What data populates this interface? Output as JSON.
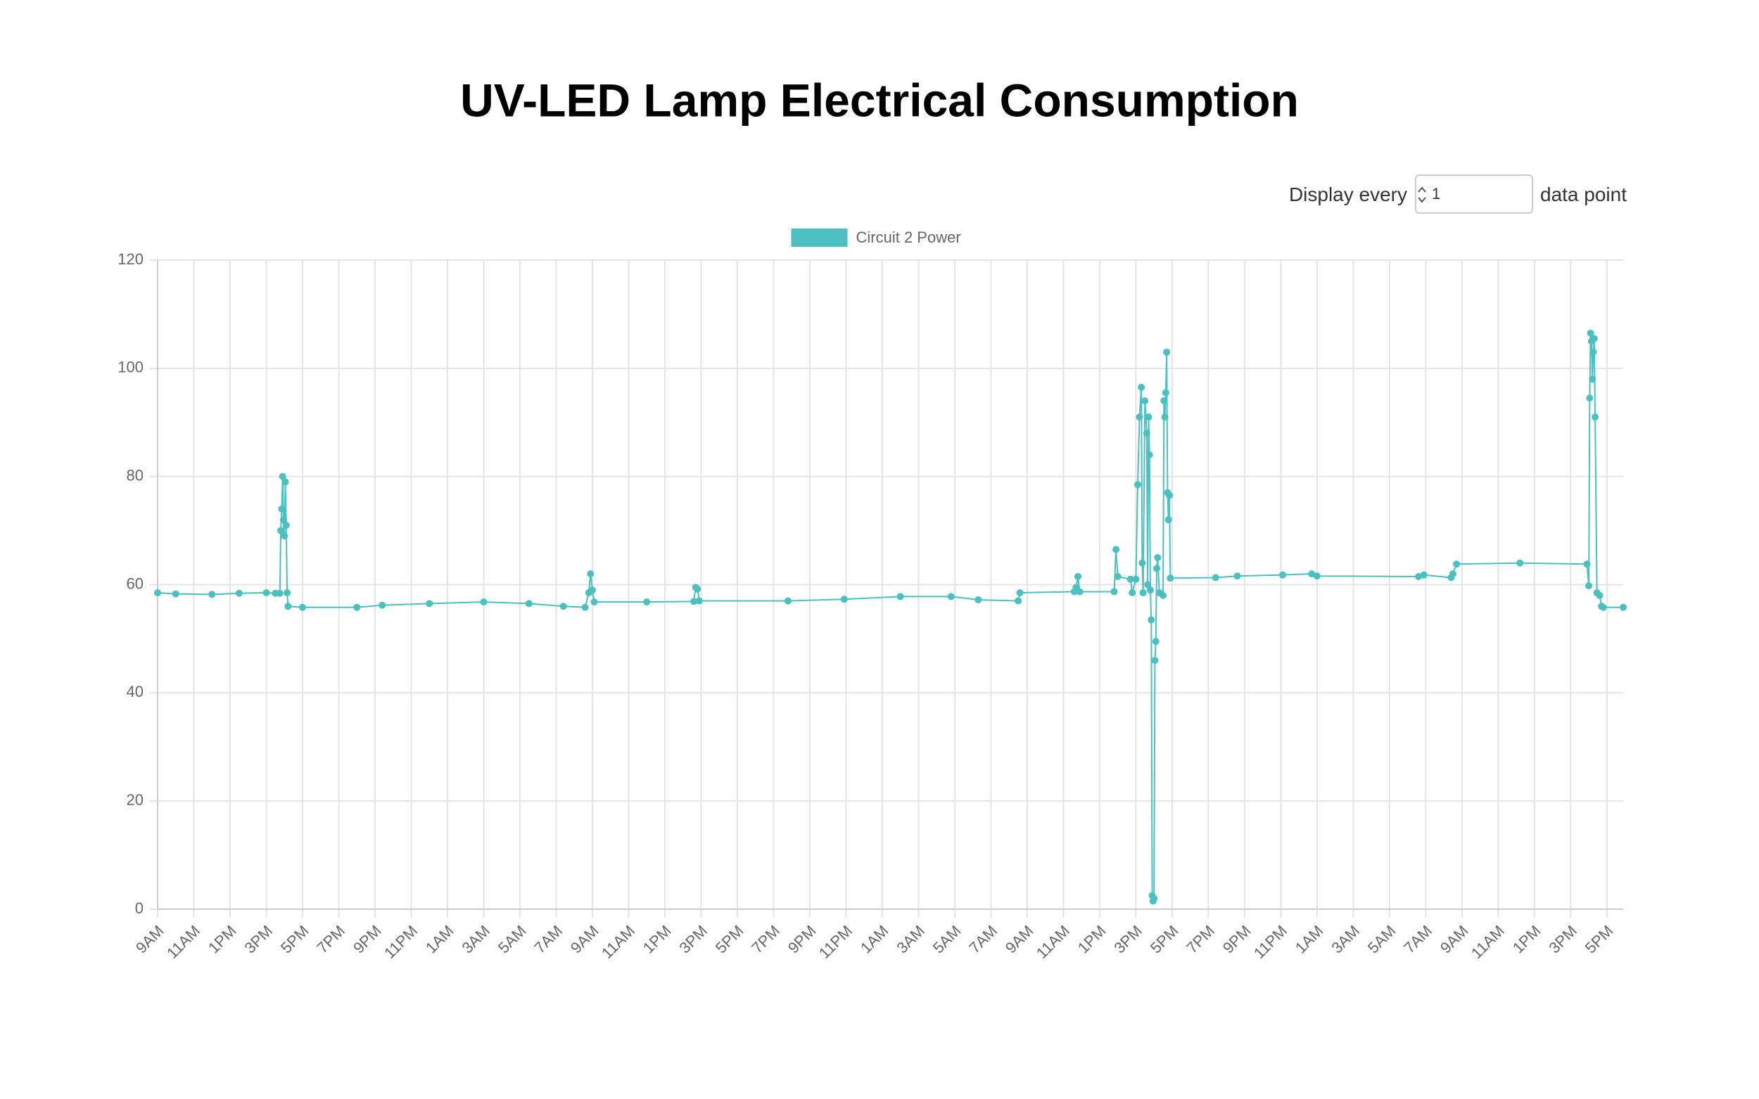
{
  "chart_data": {
    "type": "line",
    "title": "UV-LED Lamp Electrical Consumption",
    "series": [
      {
        "name": "Circuit 2 Power",
        "color": "#4bc0c0",
        "x": [
          0,
          1,
          3,
          4.5,
          6,
          6.5,
          6.75,
          6.8,
          6.85,
          6.9,
          6.95,
          7.0,
          7.05,
          7.1,
          7.15,
          7.2,
          8,
          11,
          12.4,
          15,
          18,
          20.5,
          22.4,
          23.6,
          23.8,
          23.9,
          24,
          24.1,
          27,
          29.6,
          29.7,
          29.8,
          29.9,
          34.8,
          37.9,
          41,
          43.8,
          45.3,
          47.5,
          47.6,
          50.6,
          50.7,
          50.8,
          50.9,
          52.8,
          52.9,
          53,
          53.7,
          53.8,
          54,
          54.1,
          54.2,
          54.3,
          54.35,
          54.4,
          54.5,
          54.6,
          54.65,
          54.7,
          54.75,
          54.8,
          54.85,
          54.9,
          54.95,
          55,
          55.05,
          55.1,
          55.15,
          55.2,
          55.3,
          55.5,
          55.55,
          55.6,
          55.65,
          55.7,
          55.75,
          55.8,
          55.85,
          55.9,
          58.4,
          59.6,
          62.1,
          63.7,
          64,
          69.6,
          69.9,
          71.4,
          71.5,
          71.7,
          75.2,
          78.9,
          79.0,
          79.05,
          79.1,
          79.15,
          79.2,
          79.25,
          79.3,
          79.35,
          79.45,
          79.6,
          79.7,
          79.8,
          80.9
        ],
        "values": [
          58.5,
          58.3,
          58.2,
          58.4,
          58.5,
          58.4,
          58.4,
          70,
          74,
          80,
          72,
          69,
          79,
          71,
          58.5,
          56,
          55.8,
          55.8,
          56.2,
          56.5,
          56.8,
          56.5,
          56,
          55.8,
          58.5,
          62,
          59,
          56.8,
          56.8,
          56.9,
          59.5,
          59.2,
          57,
          57,
          57.3,
          57.8,
          57.8,
          57.2,
          57,
          58.5,
          58.7,
          59.5,
          61.5,
          58.7,
          58.7,
          66.5,
          61.5,
          61,
          58.5,
          61,
          78.5,
          91,
          96.5,
          64,
          58.5,
          94,
          88,
          60,
          91,
          84,
          59,
          53.5,
          2.5,
          1.5,
          2,
          46,
          49.5,
          63,
          65,
          58.5,
          58,
          94,
          91,
          95.5,
          103,
          77,
          72,
          76.5,
          61.2,
          61.3,
          61.6,
          61.8,
          62,
          61.6,
          61.5,
          61.8,
          61.3,
          62,
          63.8,
          64,
          63.8,
          59.8,
          94.5,
          106.5,
          105,
          98,
          103,
          105.5,
          91,
          58.5,
          58,
          56,
          55.8,
          55.8
        ]
      }
    ],
    "xlim": [
      0,
      80.9
    ],
    "xticks": [
      {
        "value": 0,
        "label": "9AM"
      },
      {
        "value": 2,
        "label": "11AM"
      },
      {
        "value": 4,
        "label": "1PM"
      },
      {
        "value": 6,
        "label": "3PM"
      },
      {
        "value": 8,
        "label": "5PM"
      },
      {
        "value": 10,
        "label": "7PM"
      },
      {
        "value": 12,
        "label": "9PM"
      },
      {
        "value": 14,
        "label": "11PM"
      },
      {
        "value": 16,
        "label": "1AM"
      },
      {
        "value": 18,
        "label": "3AM"
      },
      {
        "value": 20,
        "label": "5AM"
      },
      {
        "value": 22,
        "label": "7AM"
      },
      {
        "value": 24,
        "label": "9AM"
      },
      {
        "value": 26,
        "label": "11AM"
      },
      {
        "value": 28,
        "label": "1PM"
      },
      {
        "value": 30,
        "label": "3PM"
      },
      {
        "value": 32,
        "label": "5PM"
      },
      {
        "value": 34,
        "label": "7PM"
      },
      {
        "value": 36,
        "label": "9PM"
      },
      {
        "value": 38,
        "label": "11PM"
      },
      {
        "value": 40,
        "label": "1AM"
      },
      {
        "value": 42,
        "label": "3AM"
      },
      {
        "value": 44,
        "label": "5AM"
      },
      {
        "value": 46,
        "label": "7AM"
      },
      {
        "value": 48,
        "label": "9AM"
      },
      {
        "value": 50,
        "label": "11AM"
      },
      {
        "value": 52,
        "label": "1PM"
      },
      {
        "value": 54,
        "label": "3PM"
      },
      {
        "value": 56,
        "label": "5PM"
      },
      {
        "value": 58,
        "label": "7PM"
      },
      {
        "value": 60,
        "label": "9PM"
      },
      {
        "value": 62,
        "label": "11PM"
      },
      {
        "value": 64,
        "label": "1AM"
      },
      {
        "value": 66,
        "label": "3AM"
      },
      {
        "value": 68,
        "label": "5AM"
      },
      {
        "value": 70,
        "label": "7AM"
      },
      {
        "value": 72,
        "label": "9AM"
      },
      {
        "value": 74,
        "label": "11AM"
      },
      {
        "value": 76,
        "label": "1PM"
      },
      {
        "value": 78,
        "label": "3PM"
      },
      {
        "value": 80,
        "label": "5PM"
      }
    ],
    "ylim": [
      0,
      120
    ],
    "yticks": [
      0,
      20,
      40,
      60,
      80,
      100,
      120
    ],
    "grid": true,
    "legend": "top"
  },
  "control": {
    "label_before": "Display every",
    "value": "1",
    "label_after": "data point"
  }
}
